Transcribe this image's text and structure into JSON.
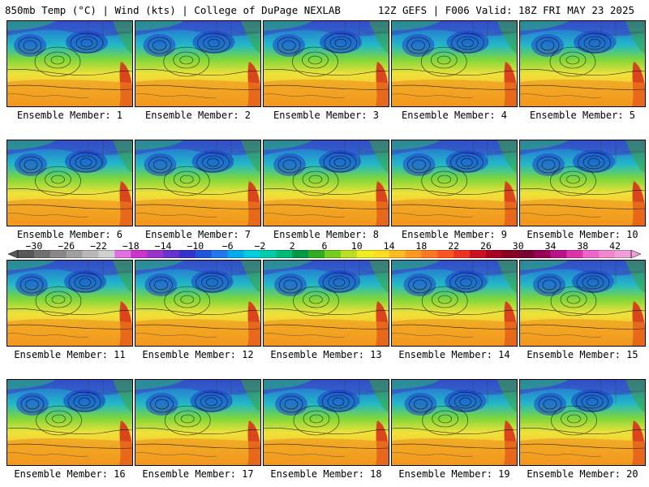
{
  "header": {
    "left": "850mb Temp (°C) | Wind (kts) | College of DuPage NEXLAB",
    "right": "12Z GEFS | F006 Valid: 18Z FRI MAY 23 2025"
  },
  "panels": [
    {
      "label": "Ensemble Member: 1"
    },
    {
      "label": "Ensemble Member: 2"
    },
    {
      "label": "Ensemble Member: 3"
    },
    {
      "label": "Ensemble Member: 4"
    },
    {
      "label": "Ensemble Member: 5"
    },
    {
      "label": "Ensemble Member: 6"
    },
    {
      "label": "Ensemble Member: 7"
    },
    {
      "label": "Ensemble Member: 8"
    },
    {
      "label": "Ensemble Member: 9"
    },
    {
      "label": "Ensemble Member: 10"
    },
    {
      "label": "Ensemble Member: 11"
    },
    {
      "label": "Ensemble Member: 12"
    },
    {
      "label": "Ensemble Member: 13"
    },
    {
      "label": "Ensemble Member: 14"
    },
    {
      "label": "Ensemble Member: 15"
    },
    {
      "label": "Ensemble Member: 16"
    },
    {
      "label": "Ensemble Member: 17"
    },
    {
      "label": "Ensemble Member: 18"
    },
    {
      "label": "Ensemble Member: 19"
    },
    {
      "label": "Ensemble Member: 20"
    }
  ],
  "colorbar": {
    "labels": [
      "−30",
      "−26",
      "−22",
      "−18",
      "−14",
      "−10",
      "−6",
      "−2",
      "2",
      "6",
      "10",
      "14",
      "18",
      "22",
      "26",
      "30",
      "34",
      "38",
      "42"
    ],
    "colors": [
      "#585858",
      "#707070",
      "#888888",
      "#a0a0a0",
      "#b8b8b8",
      "#d0d0d0",
      "#e070e0",
      "#cc33cc",
      "#9933cc",
      "#6633cc",
      "#3333cc",
      "#2255dd",
      "#2277ee",
      "#00aaee",
      "#00ccdd",
      "#00ccaa",
      "#00bb77",
      "#009944",
      "#33aa22",
      "#77cc22",
      "#bbdd22",
      "#eeee22",
      "#ffdd22",
      "#ffbb22",
      "#ff9922",
      "#ff7722",
      "#ff5522",
      "#ee3322",
      "#cc1122",
      "#aa0022",
      "#880022",
      "#770033",
      "#990055",
      "#bb1188",
      "#dd33aa",
      "#ee66cc",
      "#f088cc",
      "#f0a0d8"
    ]
  },
  "colors": {
    "cold": "#2a5fd6",
    "mid": "#7dd63a",
    "warm": "#f5a623",
    "hot": "#d62a1a",
    "contour": "#000000"
  }
}
